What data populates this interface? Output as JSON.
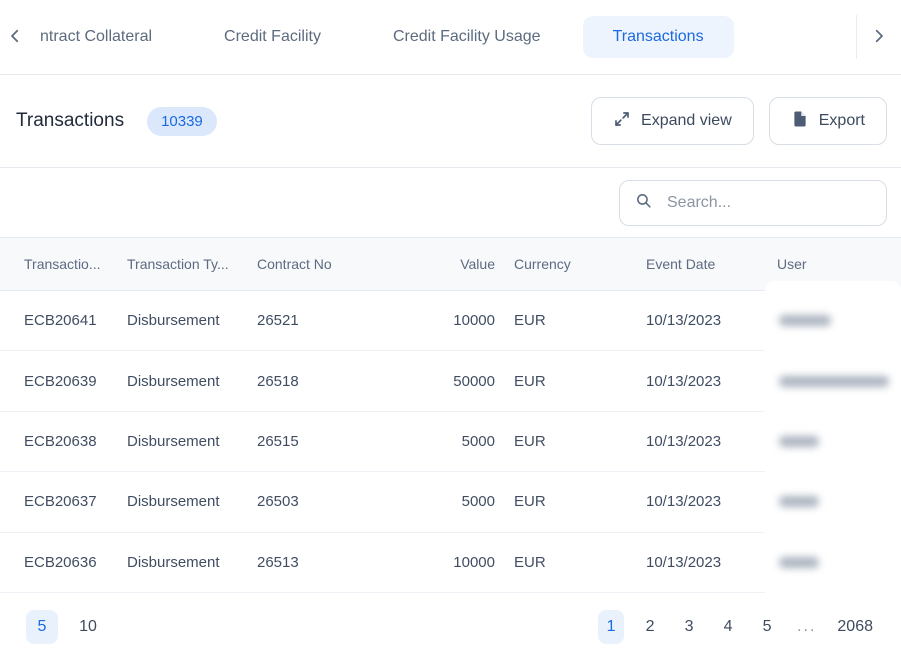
{
  "tab_bar": {
    "items": [
      {
        "label": "ntract Collateral",
        "active": false
      },
      {
        "label": "Credit Facility",
        "active": false
      },
      {
        "label": "Credit Facility Usage",
        "active": false
      },
      {
        "label": "Transactions",
        "active": true
      }
    ]
  },
  "header": {
    "title": "Transactions",
    "count_badge": "10339",
    "expand_button": "Expand view",
    "export_button": "Export"
  },
  "search": {
    "placeholder": "Search..."
  },
  "table": {
    "columns": [
      "Transactio...",
      "Transaction Ty...",
      "Contract No",
      "Value",
      "Currency",
      "Event Date",
      "User"
    ],
    "row_keys": [
      "transaction_no",
      "transaction_type",
      "contract_no",
      "value",
      "currency",
      "event_date"
    ],
    "rows": [
      {
        "transaction_no": "ECB20641",
        "transaction_type": "Disbursement",
        "contract_no": "26521",
        "value": "10000",
        "currency": "EUR",
        "event_date": "10/13/2023",
        "user_redacted": true,
        "user_blur_width": 52
      },
      {
        "transaction_no": "ECB20639",
        "transaction_type": "Disbursement",
        "contract_no": "26518",
        "value": "50000",
        "currency": "EUR",
        "event_date": "10/13/2023",
        "user_redacted": true,
        "user_blur_width": 110
      },
      {
        "transaction_no": "ECB20638",
        "transaction_type": "Disbursement",
        "contract_no": "26515",
        "value": "5000",
        "currency": "EUR",
        "event_date": "10/13/2023",
        "user_redacted": true,
        "user_blur_width": 40
      },
      {
        "transaction_no": "ECB20637",
        "transaction_type": "Disbursement",
        "contract_no": "26503",
        "value": "5000",
        "currency": "EUR",
        "event_date": "10/13/2023",
        "user_redacted": true,
        "user_blur_width": 40
      },
      {
        "transaction_no": "ECB20636",
        "transaction_type": "Disbursement",
        "contract_no": "26513",
        "value": "10000",
        "currency": "EUR",
        "event_date": "10/13/2023",
        "user_redacted": true,
        "user_blur_width": 40
      }
    ]
  },
  "pagination": {
    "page_sizes": [
      {
        "label": "5",
        "active": true
      },
      {
        "label": "10",
        "active": false
      }
    ],
    "pages": [
      {
        "label": "1",
        "active": true
      },
      {
        "label": "2",
        "active": false
      },
      {
        "label": "3",
        "active": false
      },
      {
        "label": "4",
        "active": false
      },
      {
        "label": "5",
        "active": false
      },
      {
        "label": "...",
        "ellipsis": true
      },
      {
        "label": "2068",
        "active": false
      }
    ]
  },
  "colors": {
    "accent_blue": "#1b6ae0",
    "badge_bg": "#dbe8fc",
    "active_tab_bg": "#eef4fd",
    "active_page_bg": "#e9f1fc",
    "table_header_bg": "#f7f9fb",
    "divider": "#e7eaee",
    "row_divider": "#eef2f6",
    "muted_text": "#5d6b7e"
  }
}
